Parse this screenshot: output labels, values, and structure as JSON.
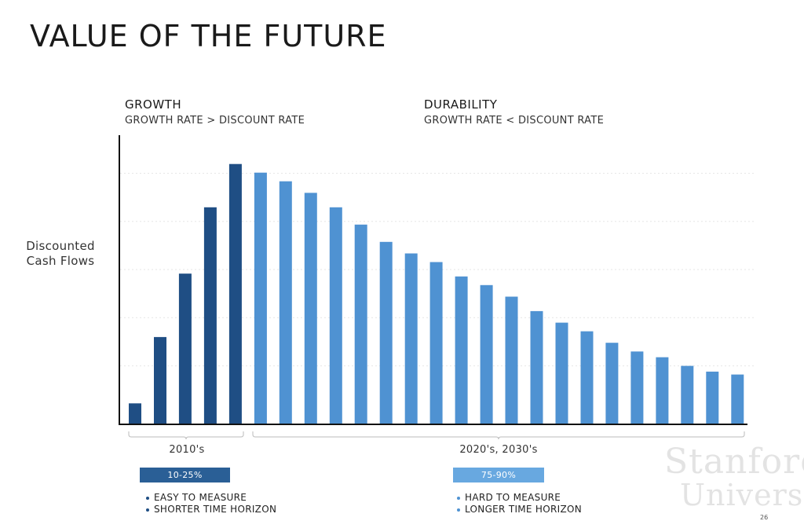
{
  "title": "VALUE OF THE FUTURE",
  "growth": {
    "heading": "GROWTH",
    "subheading": "GROWTH RATE > DISCOUNT RATE"
  },
  "durability": {
    "heading": "DURABILITY",
    "subheading": "GROWTH RATE < DISCOUNT RATE"
  },
  "ylabel_line1": "Discounted",
  "ylabel_line2": "Cash Flows",
  "periods": {
    "left": "2010's",
    "right": "2020's, 2030's"
  },
  "rates": {
    "left": "10-25%",
    "right": "75-90%"
  },
  "bullets_left": [
    "EASY TO MEASURE",
    "SHORTER TIME HORIZON"
  ],
  "bullets_right": [
    "HARD TO MEASURE",
    "LONGER TIME HORIZON"
  ],
  "watermark": {
    "line1": "Stanford",
    "line2": "University"
  },
  "page_number": "26",
  "colors": {
    "growth": "#1f4e84",
    "durability": "#4f92d2",
    "growth_box": "#2a5f96",
    "durability_box": "#68a8e0"
  },
  "chart_data": {
    "type": "bar",
    "title": "",
    "xlabel": "",
    "ylabel": "Discounted Cash Flows",
    "ylim": [
      0,
      100
    ],
    "grid": true,
    "series": [
      {
        "name": "GROWTH",
        "values": [
          7,
          30,
          52,
          75,
          90,
          null,
          null,
          null,
          null,
          null,
          null,
          null,
          null,
          null,
          null,
          null,
          null,
          null,
          null,
          null,
          null,
          null,
          null,
          null,
          null
        ]
      },
      {
        "name": "DURABILITY",
        "values": [
          null,
          null,
          null,
          null,
          null,
          87,
          84,
          80,
          75,
          69,
          63,
          59,
          56,
          51,
          48,
          44,
          39,
          35,
          32,
          28,
          25,
          23,
          20,
          18,
          17
        ]
      }
    ]
  }
}
